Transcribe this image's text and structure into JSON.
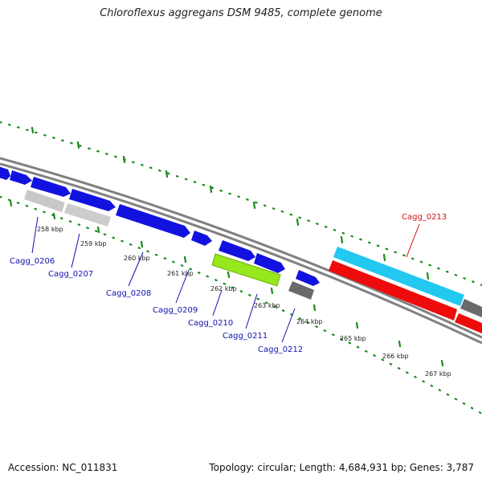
{
  "title": "Chloroflexus aggregans DSM 9485, complete genome",
  "footer": {
    "accession": "Accession: NC_011831",
    "stats": "Topology: circular; Length: 4,684,931 bp; Genes: 3,787"
  },
  "kbp_labels": [
    "258 kbp",
    "259 kbp",
    "260 kbp",
    "261 kbp",
    "262 kbp",
    "263 kbp",
    "264 kbp",
    "265 kbp",
    "266 kbp",
    "267 kbp"
  ],
  "gene_labels": [
    {
      "text": "Cagg_0206",
      "color": "#1010b0"
    },
    {
      "text": "Cagg_0207",
      "color": "#1010b0"
    },
    {
      "text": "Cagg_0208",
      "color": "#1010b0"
    },
    {
      "text": "Cagg_0209",
      "color": "#1010b0"
    },
    {
      "text": "Cagg_0210",
      "color": "#1010b0"
    },
    {
      "text": "Cagg_0211",
      "color": "#1010b0"
    },
    {
      "text": "Cagg_0212",
      "color": "#1010b0"
    },
    {
      "text": "Cagg_0213",
      "color": "#d01010"
    }
  ],
  "colors": {
    "forward_gene": "#1212e0",
    "highlight_forward": "#22c8f0",
    "highlight_reverse": "#ee0b0b",
    "pseudo_light": "#c4c4c4",
    "pseudo_dark": "#6a6a6a",
    "rna_gene": "#96e81c",
    "backbone": "#808080",
    "ruler": "#1a8a1a"
  }
}
